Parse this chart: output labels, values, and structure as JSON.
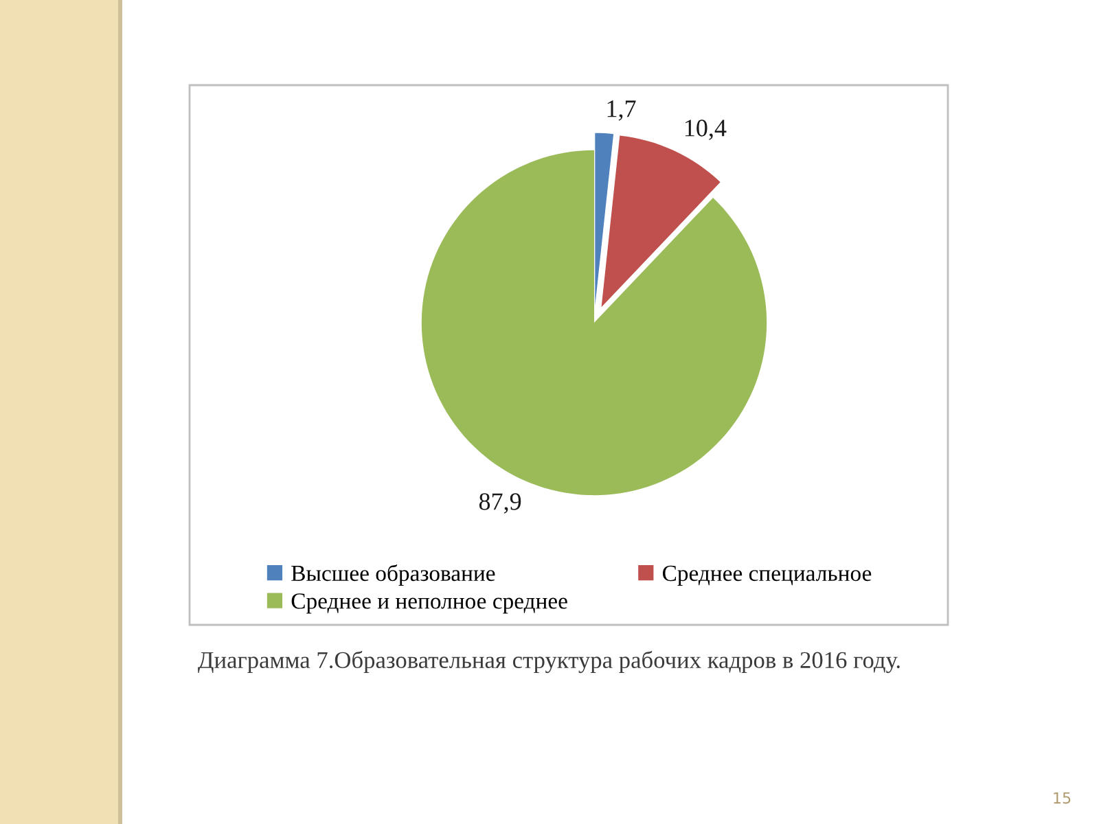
{
  "chart_data": {
    "type": "pie",
    "title": "Диаграмма 7.Образовательная структура рабочих кадров в 2016 году.",
    "categories": [
      "Высшее образование",
      "Среднее специальное",
      "Среднее и неполное среднее"
    ],
    "values": [
      1.7,
      10.4,
      87.9
    ],
    "colors": [
      "#4f81bd",
      "#c0504d",
      "#9bbb59"
    ],
    "value_labels": [
      "1,7",
      "10,4",
      "87,9"
    ],
    "legend": "bottom",
    "annotations": [
      "15"
    ]
  }
}
